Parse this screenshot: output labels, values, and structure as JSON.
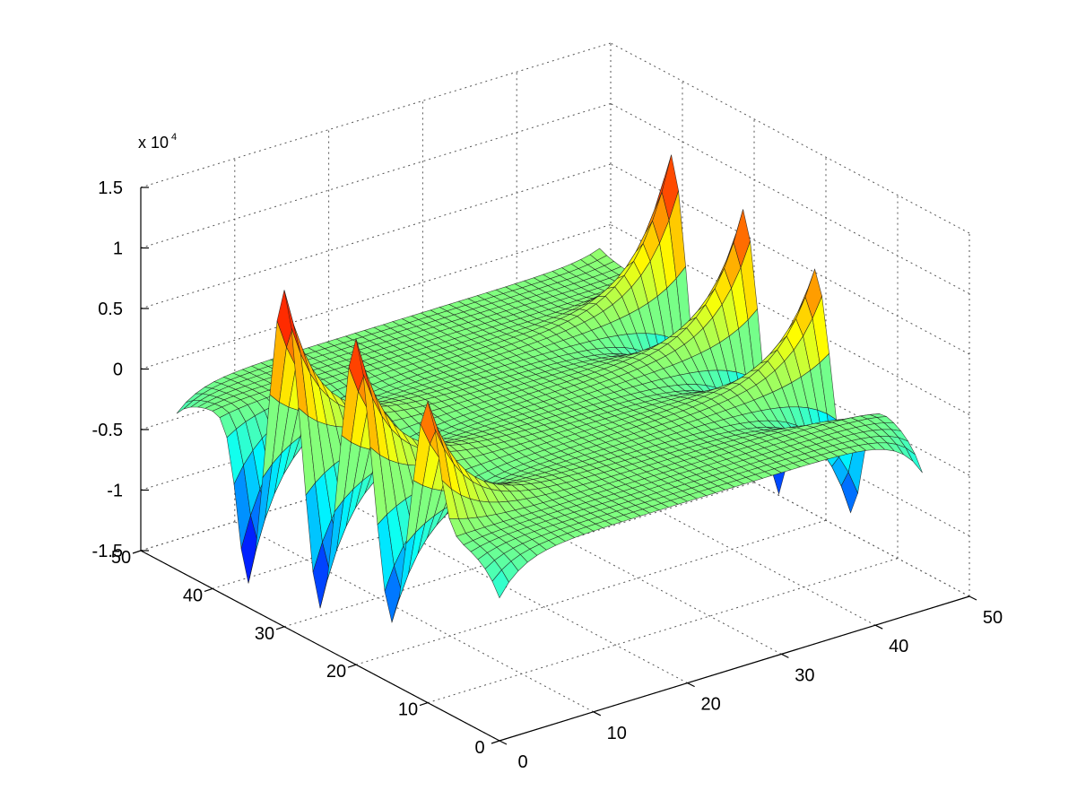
{
  "chart_data": {
    "type": "surface",
    "title": "",
    "xlabel": "",
    "ylabel": "",
    "zlabel": "",
    "colormap": "jet",
    "grid": true,
    "view": "3d-isometric",
    "x": {
      "lim": [
        0,
        50
      ],
      "ticks": [
        0,
        10,
        20,
        30,
        40,
        50
      ],
      "tick_labels": [
        "0",
        "10",
        "20",
        "30",
        "40",
        "50"
      ]
    },
    "y": {
      "lim": [
        0,
        50
      ],
      "ticks": [
        0,
        10,
        20,
        30,
        40,
        50
      ],
      "tick_labels": [
        "0",
        "10",
        "20",
        "30",
        "40",
        "50"
      ]
    },
    "z": {
      "lim": [
        -15000,
        15000
      ],
      "ticks": [
        -15000,
        -10000,
        -5000,
        0,
        5000,
        10000,
        15000
      ],
      "tick_labels": [
        "-1.5",
        "-1",
        "-0.5",
        "0",
        "0.5",
        "1",
        "1.5"
      ],
      "exponent_label": "x 10",
      "exponent_power": "4"
    },
    "surface": {
      "grid_x_range": [
        0,
        45
      ],
      "grid_y_range": [
        0,
        45
      ],
      "grid_points": 46,
      "peaks": [
        {
          "x": 0,
          "y": 10,
          "z": 10000
        },
        {
          "x": 0,
          "y": 20,
          "z": 12000
        },
        {
          "x": 0,
          "y": 30,
          "z": 12900
        },
        {
          "x": 45,
          "y": 15,
          "z": 8600
        },
        {
          "x": 45,
          "y": 25,
          "z": 10400
        },
        {
          "x": 45,
          "y": 35,
          "z": 11700
        }
      ],
      "troughs": [
        {
          "x": 0,
          "y": 15,
          "z": -10000
        },
        {
          "x": 0,
          "y": 25,
          "z": -12000
        },
        {
          "x": 0,
          "y": 35,
          "z": -13000
        },
        {
          "x": 45,
          "y": 10,
          "z": -10000
        },
        {
          "x": 45,
          "y": 20,
          "z": -11700
        },
        {
          "x": 45,
          "y": 30,
          "z": -13000
        }
      ],
      "corner_values": [
        {
          "x": 0,
          "y": 0,
          "z": -3200
        },
        {
          "x": 0,
          "y": 45,
          "z": -2100
        },
        {
          "x": 45,
          "y": 0,
          "z": -3600
        },
        {
          "x": 45,
          "y": 45,
          "z": 800
        }
      ]
    }
  }
}
